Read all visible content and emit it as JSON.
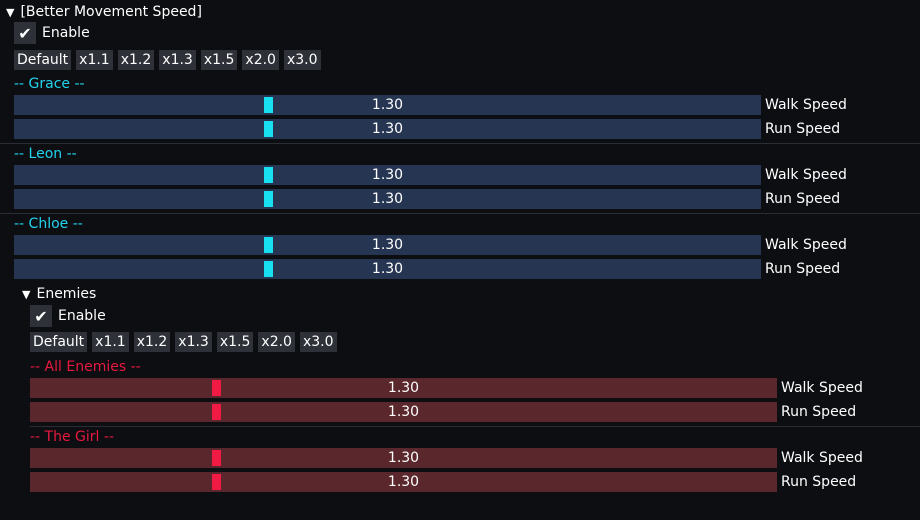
{
  "section_title": "[Better Movement Speed]",
  "enable_label": "Enable",
  "presets": [
    "Default",
    "x1.1",
    "x1.2",
    "x1.3",
    "x1.5",
    "x2.0",
    "x3.0"
  ],
  "characters": [
    {
      "name": "-- Grace --",
      "walk": {
        "label": "Walk Speed",
        "value": "1.30"
      },
      "run": {
        "label": "Run Speed",
        "value": "1.30"
      }
    },
    {
      "name": "-- Leon --",
      "walk": {
        "label": "Walk Speed",
        "value": "1.30"
      },
      "run": {
        "label": "Run Speed",
        "value": "1.30"
      }
    },
    {
      "name": "-- Chloe --",
      "walk": {
        "label": "Walk Speed",
        "value": "1.30"
      },
      "run": {
        "label": "Run Speed",
        "value": "1.30"
      }
    }
  ],
  "enemies": {
    "title": "Enemies",
    "enable_label": "Enable",
    "presets": [
      "Default",
      "x1.1",
      "x1.2",
      "x1.3",
      "x1.5",
      "x2.0",
      "x3.0"
    ],
    "groups": [
      {
        "name": "-- All Enemies --",
        "walk": {
          "label": "Walk Speed",
          "value": "1.30"
        },
        "run": {
          "label": "Run Speed",
          "value": "1.30"
        }
      },
      {
        "name": "-- The Girl --",
        "walk": {
          "label": "Walk Speed",
          "value": "1.30"
        },
        "run": {
          "label": "Run Speed",
          "value": "1.30"
        }
      }
    ]
  },
  "colors": {
    "player_accent": "#22d3ee",
    "enemy_accent": "#e8183f"
  }
}
